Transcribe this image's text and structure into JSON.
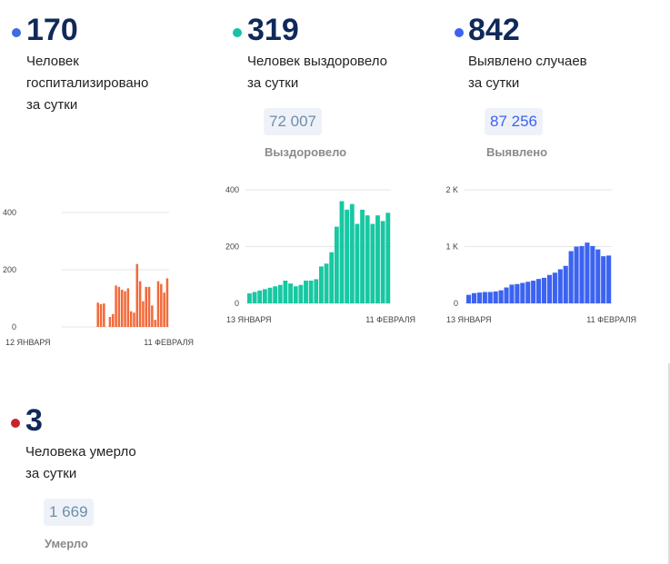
{
  "stats": [
    {
      "key": "hospitalized",
      "number": "170",
      "desc1": "Человек",
      "desc2": "госпитализировано",
      "desc3": "за сутки",
      "dot_color": "#3d6be0"
    },
    {
      "key": "recovered",
      "number": "319",
      "desc1": "Человек выздоровело",
      "desc2": "за сутки",
      "dot_color": "#17c2a0",
      "total": "72 007",
      "total_label": "Выздоровело",
      "total_color": "#6d8ea8"
    },
    {
      "key": "detected",
      "number": "842",
      "desc1": "Выявлено случаев",
      "desc2": "за сутки",
      "dot_color": "#3c63f0",
      "total": "87 256",
      "total_label": "Выявлено",
      "total_color": "#3c63f0"
    },
    {
      "key": "died",
      "number": "3",
      "desc1": "Человека умерло",
      "desc2": "за сутки",
      "dot_color": "#c8242b",
      "total": "1 669",
      "total_label": "Умерло",
      "total_color": "#6d8ea8"
    }
  ],
  "chart_data": [
    {
      "type": "bar",
      "color": "#f26a3a",
      "ylim": [
        0,
        400
      ],
      "yticks": [
        "0",
        "200",
        "400"
      ],
      "x_start_label": "12 ЯНВАРЯ",
      "x_end_label": "11 ФЕВРАЛЯ",
      "values": [
        null,
        null,
        null,
        null,
        null,
        null,
        null,
        null,
        null,
        null,
        null,
        85,
        80,
        82,
        null,
        35,
        45,
        145,
        140,
        130,
        125,
        135,
        55,
        50,
        220,
        160,
        90,
        140,
        140,
        75,
        25,
        160,
        150,
        120,
        170
      ]
    },
    {
      "type": "bar",
      "color": "#17c8a2",
      "ylim": [
        0,
        400
      ],
      "yticks": [
        "0",
        "200",
        "400"
      ],
      "x_start_label": "13 ЯНВАРЯ",
      "x_end_label": "11 ФЕВРАЛЯ",
      "values": [
        35,
        40,
        45,
        50,
        55,
        60,
        65,
        80,
        70,
        60,
        65,
        80,
        80,
        85,
        130,
        140,
        180,
        270,
        360,
        330,
        350,
        280,
        330,
        310,
        280,
        310,
        290,
        319
      ]
    },
    {
      "type": "bar",
      "color": "#3c63f0",
      "ylim": [
        0,
        2000
      ],
      "yticks": [
        "0",
        "1 K",
        "2 K"
      ],
      "x_start_label": "13 ЯНВАРЯ",
      "x_end_label": "11 ФЕВРАЛЯ",
      "values": [
        150,
        180,
        190,
        200,
        200,
        210,
        230,
        280,
        330,
        340,
        360,
        380,
        400,
        430,
        450,
        500,
        540,
        600,
        660,
        920,
        1000,
        1010,
        1070,
        1010,
        950,
        830,
        842
      ]
    }
  ]
}
